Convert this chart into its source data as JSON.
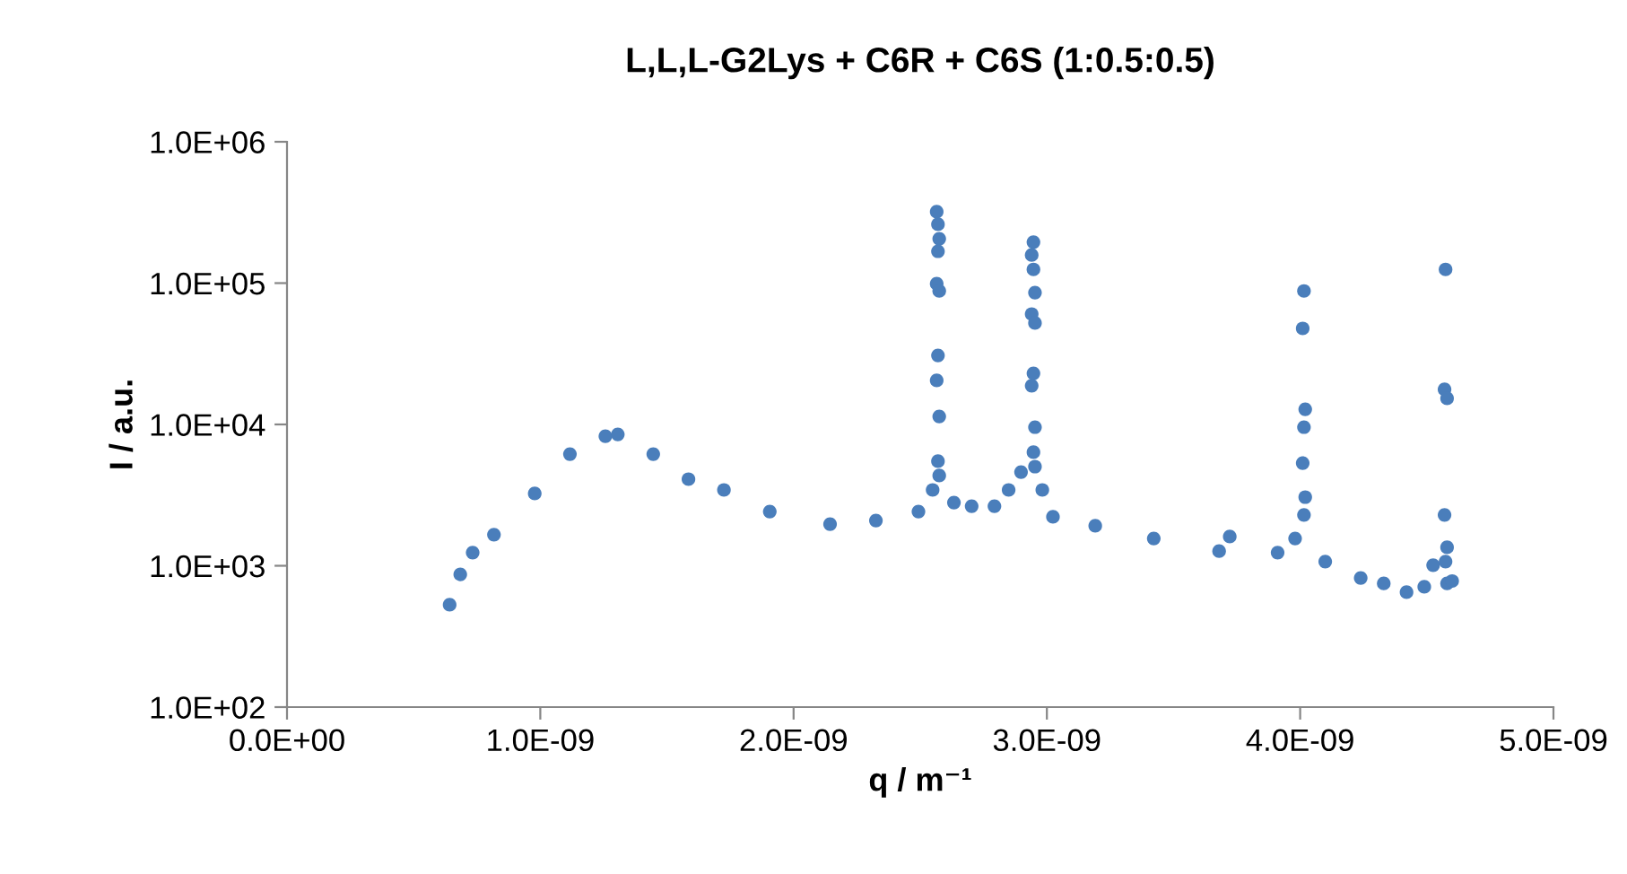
{
  "chart_data": {
    "type": "scatter",
    "title": "L,L,L-G2Lys + C6R + C6S (1:0.5:0.5)",
    "xlabel": "q / m⁻¹",
    "ylabel": "I / a.u.",
    "log": "y",
    "grid": false,
    "legend": false,
    "marker": "circle",
    "xlim": [
      0,
      5e-09
    ],
    "ylim": [
      100,
      1000000
    ],
    "xticks": [
      {
        "value": 0,
        "label": "0.0E+00"
      },
      {
        "value": 1e-09,
        "label": "1.0E-09"
      },
      {
        "value": 2e-09,
        "label": "2.0E-09"
      },
      {
        "value": 3e-09,
        "label": "3.0E-09"
      },
      {
        "value": 4e-09,
        "label": "4.0E-09"
      },
      {
        "value": 5e-09,
        "label": "5.0E-09"
      }
    ],
    "yticks": [
      {
        "value": 100,
        "label": "1.0E+02"
      },
      {
        "value": 1000,
        "label": "1.0E+03"
      },
      {
        "value": 10000,
        "label": "1.0E+04"
      },
      {
        "value": 100000,
        "label": "1.0E+05"
      },
      {
        "value": 1000000,
        "label": "1.0E+06"
      }
    ],
    "series": [
      {
        "color": "#4a7ebb",
        "x": [
          6.42e-10,
          6.84e-10,
          7.33e-10,
          8.17e-10,
          9.78e-10,
          1.117e-09,
          1.257e-09,
          1.306e-09,
          1.446e-09,
          1.585e-09,
          1.725e-09,
          1.906e-09,
          2.144e-09,
          2.325e-09,
          2.493e-09,
          2.549e-09,
          2.565e-09,
          2.57e-09,
          2.575e-09,
          2.57e-09,
          2.565e-09,
          2.575e-09,
          2.57e-09,
          2.565e-09,
          2.575e-09,
          2.57e-09,
          2.575e-09,
          2.633e-09,
          2.703e-09,
          2.793e-09,
          2.849e-09,
          2.898e-09,
          2.947e-09,
          2.94e-09,
          2.947e-09,
          2.953e-09,
          2.94e-09,
          2.953e-09,
          2.947e-09,
          2.94e-09,
          2.953e-09,
          2.947e-09,
          2.953e-09,
          2.982e-09,
          3.024e-09,
          3.191e-09,
          3.422e-09,
          3.68e-09,
          3.722e-09,
          3.911e-09,
          3.98e-09,
          4.015e-09,
          4.01e-09,
          4.02e-09,
          4.015e-09,
          4.01e-09,
          4.02e-09,
          4.015e-09,
          4.099e-09,
          4.239e-09,
          4.33e-09,
          4.42e-09,
          4.49e-09,
          4.525e-09,
          4.574e-09,
          4.57e-09,
          4.58e-09,
          4.57e-09,
          4.58e-09,
          4.574e-09,
          4.58e-09,
          4.6e-09
        ],
        "values": [
          530,
          870,
          1240,
          1660,
          3250,
          6170,
          8260,
          8510,
          6170,
          4100,
          3440,
          2420,
          1970,
          2090,
          2420,
          3440,
          320000,
          261000,
          206000,
          168000,
          99000,
          88000,
          30800,
          20500,
          11400,
          5500,
          4350,
          2800,
          2640,
          2640,
          3440,
          4600,
          195000,
          158000,
          125000,
          85700,
          60400,
          52200,
          23000,
          18800,
          9570,
          6360,
          5030,
          3440,
          2220,
          1920,
          1560,
          1270,
          1610,
          1240,
          1560,
          88000,
          47800,
          12800,
          9570,
          5330,
          3060,
          2290,
          1070,
          820,
          750,
          650,
          710,
          1010,
          125000,
          17700,
          15300,
          2290,
          1350,
          1070,
          750,
          780
        ]
      }
    ]
  }
}
